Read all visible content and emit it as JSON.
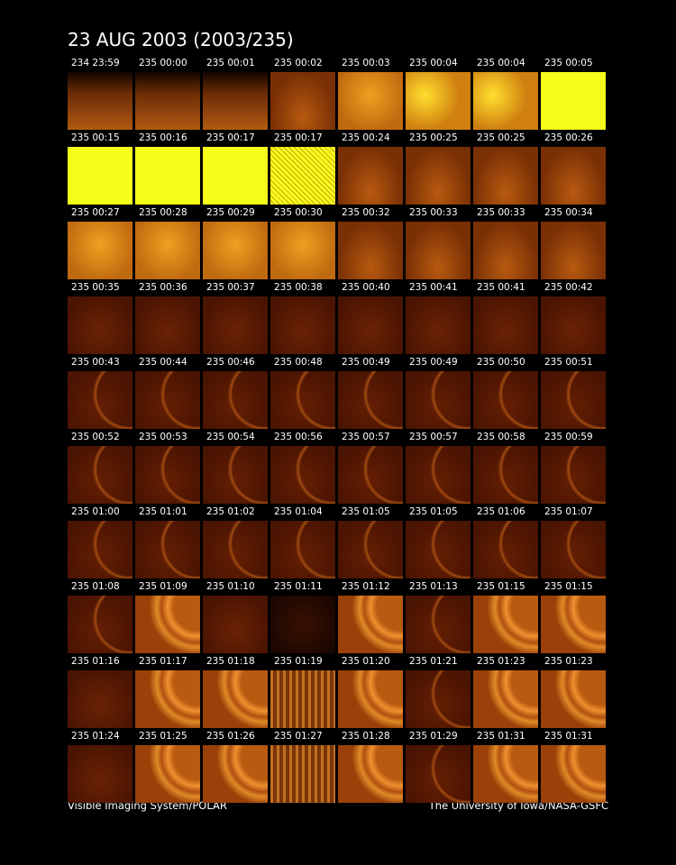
{
  "header": {
    "title": "23 AUG 2003  (2003/235)"
  },
  "tiles": [
    [
      "234 23:59",
      "235 00:00",
      "235 00:01",
      "235 00:02",
      "235 00:03",
      "235 00:04",
      "235 00:04",
      "235 00:05"
    ],
    [
      "235 00:15",
      "235 00:16",
      "235 00:17",
      "235 00:17",
      "235 00:24",
      "235 00:25",
      "235 00:25",
      "235 00:26"
    ],
    [
      "235 00:27",
      "235 00:28",
      "235 00:29",
      "235 00:30",
      "235 00:32",
      "235 00:33",
      "235 00:33",
      "235 00:34"
    ],
    [
      "235 00:35",
      "235 00:36",
      "235 00:37",
      "235 00:38",
      "235 00:40",
      "235 00:41",
      "235 00:41",
      "235 00:42"
    ],
    [
      "235 00:43",
      "235 00:44",
      "235 00:46",
      "235 00:48",
      "235 00:49",
      "235 00:49",
      "235 00:50",
      "235 00:51"
    ],
    [
      "235 00:52",
      "235 00:53",
      "235 00:54",
      "235 00:56",
      "235 00:57",
      "235 00:57",
      "235 00:58",
      "235 00:59"
    ],
    [
      "235 01:00",
      "235 01:01",
      "235 01:02",
      "235 01:04",
      "235 01:05",
      "235 01:05",
      "235 01:06",
      "235 01:07"
    ],
    [
      "235 01:08",
      "235 01:09",
      "235 01:10",
      "235 01:11",
      "235 01:12",
      "235 01:13",
      "235 01:15",
      "235 01:15"
    ],
    [
      "235 01:16",
      "235 01:17",
      "235 01:18",
      "235 01:19",
      "235 01:20",
      "235 01:21",
      "235 01:23",
      "235 01:23"
    ],
    [
      "235 01:24",
      "235 01:25",
      "235 01:26",
      "235 01:27",
      "235 01:28",
      "235 01:29",
      "235 01:31",
      "235 01:31"
    ]
  ],
  "footer": {
    "left": "Visible Imaging System/POLAR",
    "right": "The University of Iowa/NASA-GSFC"
  }
}
